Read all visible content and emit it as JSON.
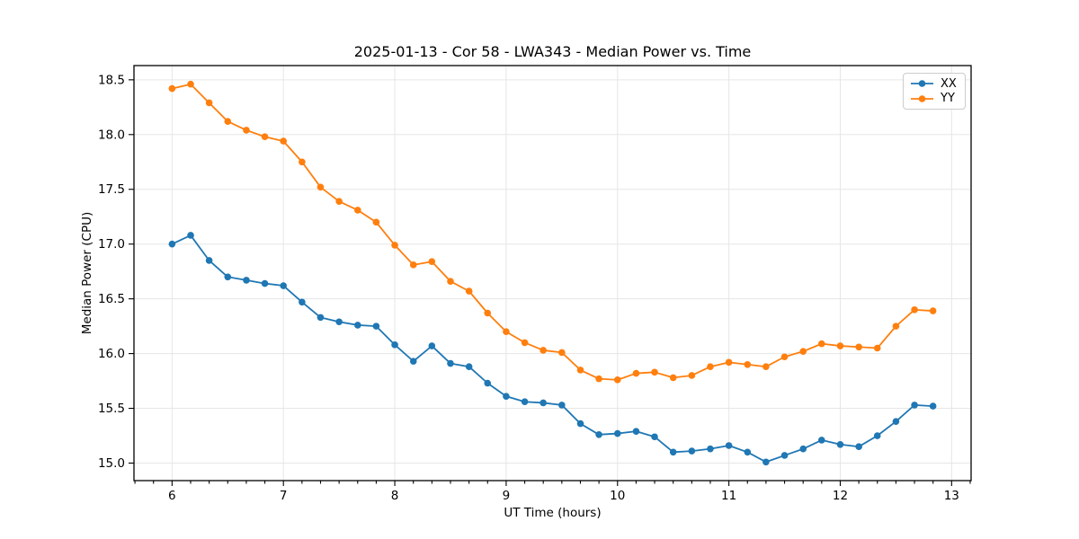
{
  "chart_data": {
    "type": "line",
    "title": "2025-01-13 - Cor 58 - LWA343 - Median Power vs. Time",
    "xlabel": "UT Time (hours)",
    "ylabel": "Median Power (CPU)",
    "xlim": [
      5.658,
      13.175
    ],
    "ylim": [
      14.84,
      18.63
    ],
    "xticks": [
      6,
      7,
      8,
      9,
      10,
      11,
      12,
      13
    ],
    "xtick_labels": [
      "6",
      "7",
      "8",
      "9",
      "10",
      "11",
      "12",
      "13"
    ],
    "yticks": [
      15.0,
      15.5,
      16.0,
      16.5,
      17.0,
      17.5,
      18.0,
      18.5
    ],
    "ytick_labels": [
      "15.0",
      "15.5",
      "16.0",
      "16.5",
      "17.0",
      "17.5",
      "18.0",
      "18.5"
    ],
    "minor_xtick_step_hours": 0.1667,
    "grid": true,
    "legend_position": "upper right",
    "grid_color": "#e6e6e6",
    "spine_color": "#000000",
    "x": [
      6.0,
      6.167,
      6.333,
      6.5,
      6.667,
      6.833,
      7.0,
      7.167,
      7.333,
      7.5,
      7.667,
      7.833,
      8.0,
      8.167,
      8.333,
      8.5,
      8.667,
      8.833,
      9.0,
      9.167,
      9.333,
      9.5,
      9.667,
      9.833,
      10.0,
      10.167,
      10.333,
      10.5,
      10.667,
      10.833,
      11.0,
      11.167,
      11.333,
      11.5,
      11.667,
      11.833,
      12.0,
      12.167,
      12.333,
      12.5,
      12.667,
      12.833
    ],
    "series": [
      {
        "name": "XX",
        "color": "#1f77b4",
        "values": [
          17.0,
          17.08,
          16.85,
          16.7,
          16.67,
          16.64,
          16.62,
          16.47,
          16.33,
          16.29,
          16.26,
          16.25,
          16.08,
          15.93,
          16.07,
          15.91,
          15.88,
          15.73,
          15.61,
          15.56,
          15.55,
          15.53,
          15.36,
          15.26,
          15.27,
          15.29,
          15.24,
          15.1,
          15.11,
          15.13,
          15.16,
          15.1,
          15.01,
          15.07,
          15.13,
          15.21,
          15.17,
          15.15,
          15.25,
          15.38,
          15.53,
          15.52
        ]
      },
      {
        "name": "YY",
        "color": "#ff7f0e",
        "values": [
          18.42,
          18.46,
          18.29,
          18.12,
          18.04,
          17.98,
          17.94,
          17.75,
          17.52,
          17.39,
          17.31,
          17.2,
          16.99,
          16.81,
          16.84,
          16.66,
          16.57,
          16.37,
          16.2,
          16.1,
          16.03,
          16.01,
          15.85,
          15.77,
          15.76,
          15.82,
          15.83,
          15.78,
          15.8,
          15.88,
          15.92,
          15.9,
          15.88,
          15.97,
          16.02,
          16.09,
          16.07,
          16.06,
          16.05,
          16.25,
          16.4,
          16.39
        ]
      }
    ]
  }
}
